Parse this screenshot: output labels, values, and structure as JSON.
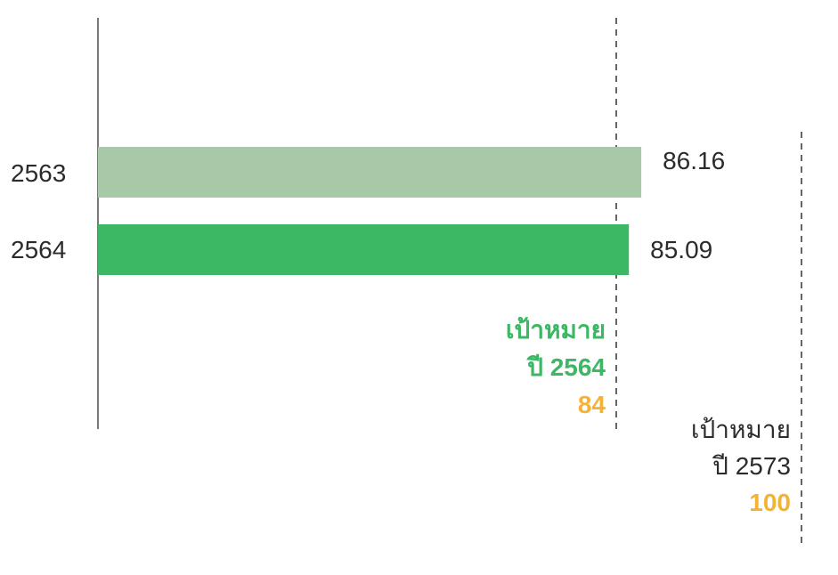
{
  "chart_data": {
    "type": "bar",
    "orientation": "horizontal",
    "categories": [
      "2563",
      "2564"
    ],
    "values": [
      86.16,
      85.09
    ],
    "value_labels": [
      "86.16",
      "85.09"
    ],
    "bar_colors": [
      "#a8c9a8",
      "#3cb764"
    ],
    "xlim": [
      0,
      100
    ],
    "grid": false,
    "targets": [
      {
        "label": "เป้าหมาย",
        "year_label": "ปี 2564",
        "value": 84,
        "value_label": "84",
        "text_color": "#3cb764"
      },
      {
        "label": "เป้าหมาย",
        "year_label": "ปี 2573",
        "value": 100,
        "value_label": "100",
        "text_color": "#2b2b2b"
      }
    ],
    "target_value_color": "#f5b335"
  }
}
